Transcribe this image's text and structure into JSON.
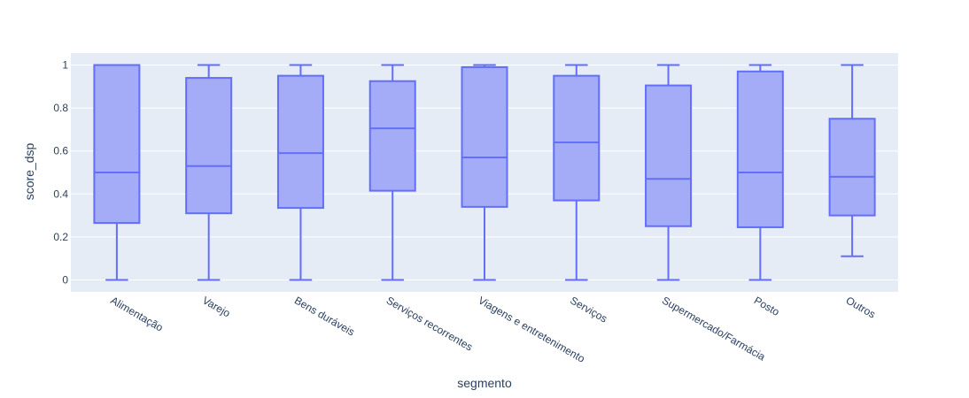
{
  "chart_data": {
    "type": "box",
    "title": "",
    "xlabel": "segmento",
    "ylabel": "score_dsp",
    "ylim": [
      -0.05,
      1.05
    ],
    "yticks": [
      0,
      0.2,
      0.4,
      0.6,
      0.8,
      1
    ],
    "ytick_labels": [
      "0",
      "0.2",
      "0.4",
      "0.6",
      "0.8",
      "1"
    ],
    "grid": true,
    "colors": {
      "plot_bg": "#e5ecf6",
      "grid": "#ffffff",
      "box_fill": "#a4abf7",
      "box_line": "#636efa",
      "text": "#2a3f5f"
    },
    "categories": [
      "Alimentação",
      "Varejo",
      "Bens duráveis",
      "Serviços recorrentes",
      "Viagens e entretenimento",
      "Serviços",
      "Supermercado/Farmácia",
      "Posto",
      "Outros"
    ],
    "boxes": [
      {
        "category": "Alimentação",
        "min": 0,
        "q1": 0.265,
        "median": 0.5,
        "q3": 1.0,
        "max": 1.0
      },
      {
        "category": "Varejo",
        "min": 0,
        "q1": 0.31,
        "median": 0.53,
        "q3": 0.94,
        "max": 1.0
      },
      {
        "category": "Bens duráveis",
        "min": 0,
        "q1": 0.335,
        "median": 0.59,
        "q3": 0.95,
        "max": 1.0
      },
      {
        "category": "Serviços recorrentes",
        "min": 0,
        "q1": 0.415,
        "median": 0.705,
        "q3": 0.925,
        "max": 1.0
      },
      {
        "category": "Viagens e entretenimento",
        "min": 0,
        "q1": 0.34,
        "median": 0.57,
        "q3": 0.99,
        "max": 1.0
      },
      {
        "category": "Serviços",
        "min": 0,
        "q1": 0.37,
        "median": 0.64,
        "q3": 0.95,
        "max": 1.0
      },
      {
        "category": "Supermercado/Farmácia",
        "min": 0,
        "q1": 0.25,
        "median": 0.47,
        "q3": 0.905,
        "max": 1.0
      },
      {
        "category": "Posto",
        "min": 0,
        "q1": 0.245,
        "median": 0.5,
        "q3": 0.97,
        "max": 1.0
      },
      {
        "category": "Outros",
        "min": 0.11,
        "q1": 0.3,
        "median": 0.48,
        "q3": 0.75,
        "max": 1.0
      }
    ]
  }
}
